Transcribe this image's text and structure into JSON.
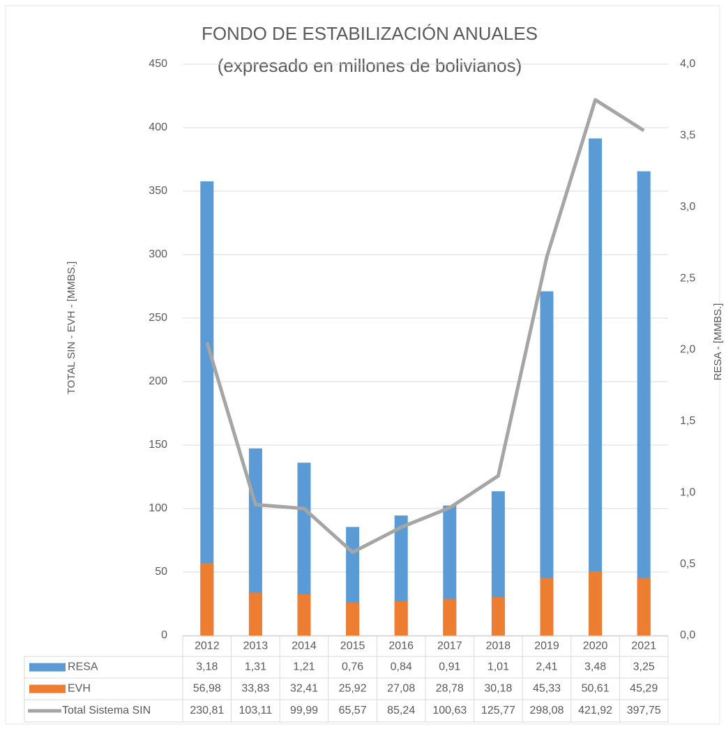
{
  "chart_data": {
    "type": "bar",
    "title": "FONDO DE ESTABILIZACIÓN ANUALES",
    "subtitle": "(expresado en millones de bolivianos)",
    "y_label": "TOTAL SIN - EVH - [MMBS.]",
    "y2_label": "RESA - [MMBS.]",
    "categories": [
      "2012",
      "2013",
      "2014",
      "2015",
      "2016",
      "2017",
      "2018",
      "2019",
      "2020",
      "2021"
    ],
    "ylim": [
      0,
      450
    ],
    "yticks": [
      0,
      50,
      100,
      150,
      200,
      250,
      300,
      350,
      400,
      450
    ],
    "y2lim": [
      0,
      4
    ],
    "y2ticks": [
      {
        "value": 0,
        "label": "0,0"
      },
      {
        "value": 0.5,
        "label": "0,5"
      },
      {
        "value": 1,
        "label": "1,0"
      },
      {
        "value": 1.5,
        "label": "1,5"
      },
      {
        "value": 2,
        "label": "2,0"
      },
      {
        "value": 2.5,
        "label": "2,5"
      },
      {
        "value": 3,
        "label": "3,0"
      },
      {
        "value": 3.5,
        "label": "3,5"
      },
      {
        "value": 4,
        "label": "4,0"
      }
    ],
    "grid": true,
    "series": [
      {
        "name": "RESA",
        "type": "bar",
        "axis": "y2",
        "color": "#5b9bd5",
        "values": [
          3.18,
          1.31,
          1.21,
          0.76,
          0.84,
          0.91,
          1.01,
          2.41,
          3.48,
          3.25
        ],
        "value_labels": [
          "3,18",
          "1,31",
          "1,21",
          "0,76",
          "0,84",
          "0,91",
          "1,01",
          "2,41",
          "3,48",
          "3,25"
        ]
      },
      {
        "name": "EVH",
        "type": "bar",
        "color": "#ed7d31",
        "values": [
          56.98,
          33.83,
          32.41,
          25.92,
          27.08,
          28.78,
          30.18,
          45.33,
          50.61,
          45.29
        ],
        "value_labels": [
          "56,98",
          "33,83",
          "32,41",
          "25,92",
          "27,08",
          "28,78",
          "30,18",
          "45,33",
          "50,61",
          "45,29"
        ]
      },
      {
        "name": "Total Sistema SIN",
        "type": "line",
        "color": "#a5a5a5",
        "values": [
          230.81,
          103.11,
          99.99,
          65.57,
          85.24,
          100.63,
          125.77,
          298.08,
          421.92,
          397.75
        ],
        "value_labels": [
          "230,81",
          "103,11",
          "99,99",
          "65,57",
          "85,24",
          "100,63",
          "125,77",
          "298,08",
          "421,92",
          "397,75"
        ]
      }
    ]
  }
}
